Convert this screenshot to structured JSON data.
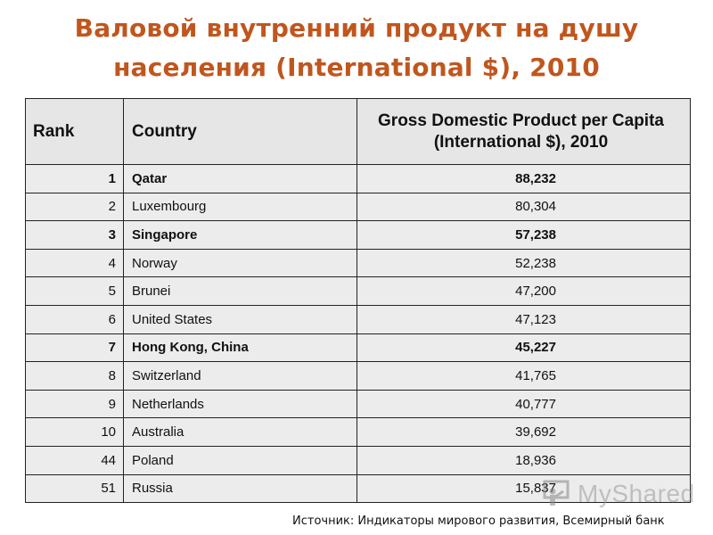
{
  "title": {
    "line1": "Валовой внутренний продукт на душу",
    "line2": "населения (International $), 2010"
  },
  "table": {
    "headers": {
      "rank": "Rank",
      "country": "Country",
      "gdp": "Gross Domestic Product per Capita (International $), 2010"
    },
    "rows": [
      {
        "rank": "1",
        "country": "Qatar",
        "gdp": "88,232",
        "bold": true
      },
      {
        "rank": "2",
        "country": "Luxembourg",
        "gdp": "80,304",
        "bold": false
      },
      {
        "rank": "3",
        "country": "Singapore",
        "gdp": "57,238",
        "bold": true
      },
      {
        "rank": "4",
        "country": "Norway",
        "gdp": "52,238",
        "bold": false
      },
      {
        "rank": "5",
        "country": "Brunei",
        "gdp": "47,200",
        "bold": false
      },
      {
        "rank": "6",
        "country": "United States",
        "gdp": "47,123",
        "bold": false
      },
      {
        "rank": "7",
        "country": "Hong Kong, China",
        "gdp": "45,227",
        "bold": true
      },
      {
        "rank": "8",
        "country": "Switzerland",
        "gdp": "41,765",
        "bold": false
      },
      {
        "rank": "9",
        "country": "Netherlands",
        "gdp": "40,777",
        "bold": false
      },
      {
        "rank": "10",
        "country": "Australia",
        "gdp": "39,692",
        "bold": false
      },
      {
        "rank": "44",
        "country": "Poland",
        "gdp": "18,936",
        "bold": false
      },
      {
        "rank": "51",
        "country": "Russia",
        "gdp": "15,837",
        "bold": false
      }
    ]
  },
  "source": "Источник: Индикаторы мирового развития, Всемирный банк",
  "watermark": {
    "text": "MyShared",
    "icon": "presenter-icon"
  },
  "colors": {
    "title": "#c0561e",
    "table_background": "#ececec",
    "border": "#222222"
  }
}
